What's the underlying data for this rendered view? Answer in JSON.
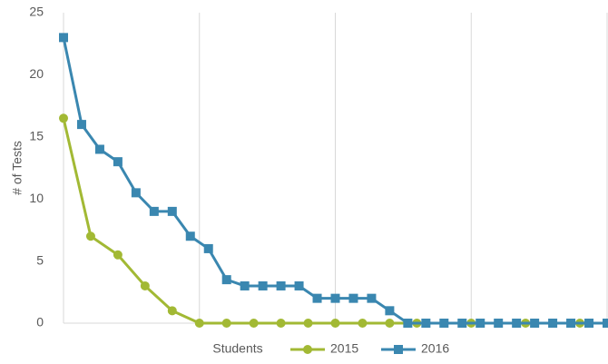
{
  "chart_data": {
    "type": "line",
    "x_label": "Students",
    "y_label": "# of Tests",
    "series": [
      {
        "name": "2015",
        "color": "#a2b934",
        "marker": "circle",
        "x": [
          0,
          3,
          6,
          9,
          12,
          15,
          18,
          21,
          24,
          27,
          30,
          33,
          36,
          39,
          42,
          45,
          48,
          51,
          54,
          57,
          60
        ],
        "values": [
          16.5,
          7,
          5.5,
          3,
          1,
          0,
          0,
          0,
          0,
          0,
          0,
          0,
          0,
          0,
          0,
          0,
          0,
          0,
          0,
          0,
          0
        ]
      },
      {
        "name": "2016",
        "color": "#3a87b0",
        "marker": "square",
        "x": [
          0,
          2,
          4,
          6,
          8,
          10,
          12,
          14,
          16,
          18,
          20,
          22,
          24,
          26,
          28,
          30,
          32,
          34,
          36,
          38,
          40,
          42,
          44,
          46,
          48,
          50,
          52,
          54,
          56,
          58,
          60
        ],
        "values": [
          23,
          16,
          14,
          13,
          10.5,
          9,
          9,
          7,
          6,
          3.5,
          3,
          3,
          3,
          3,
          2,
          2,
          2,
          2,
          1,
          0,
          0,
          0,
          0,
          0,
          0,
          0,
          0,
          0,
          0,
          0,
          0
        ]
      }
    ],
    "xlim": [
      0,
      60
    ],
    "xticks": [
      0,
      15,
      30,
      45,
      60
    ],
    "ylim": [
      0,
      25
    ],
    "yticks": [
      0,
      5,
      10,
      15,
      20,
      25
    ],
    "xgrid": true,
    "legend": "bottom"
  }
}
